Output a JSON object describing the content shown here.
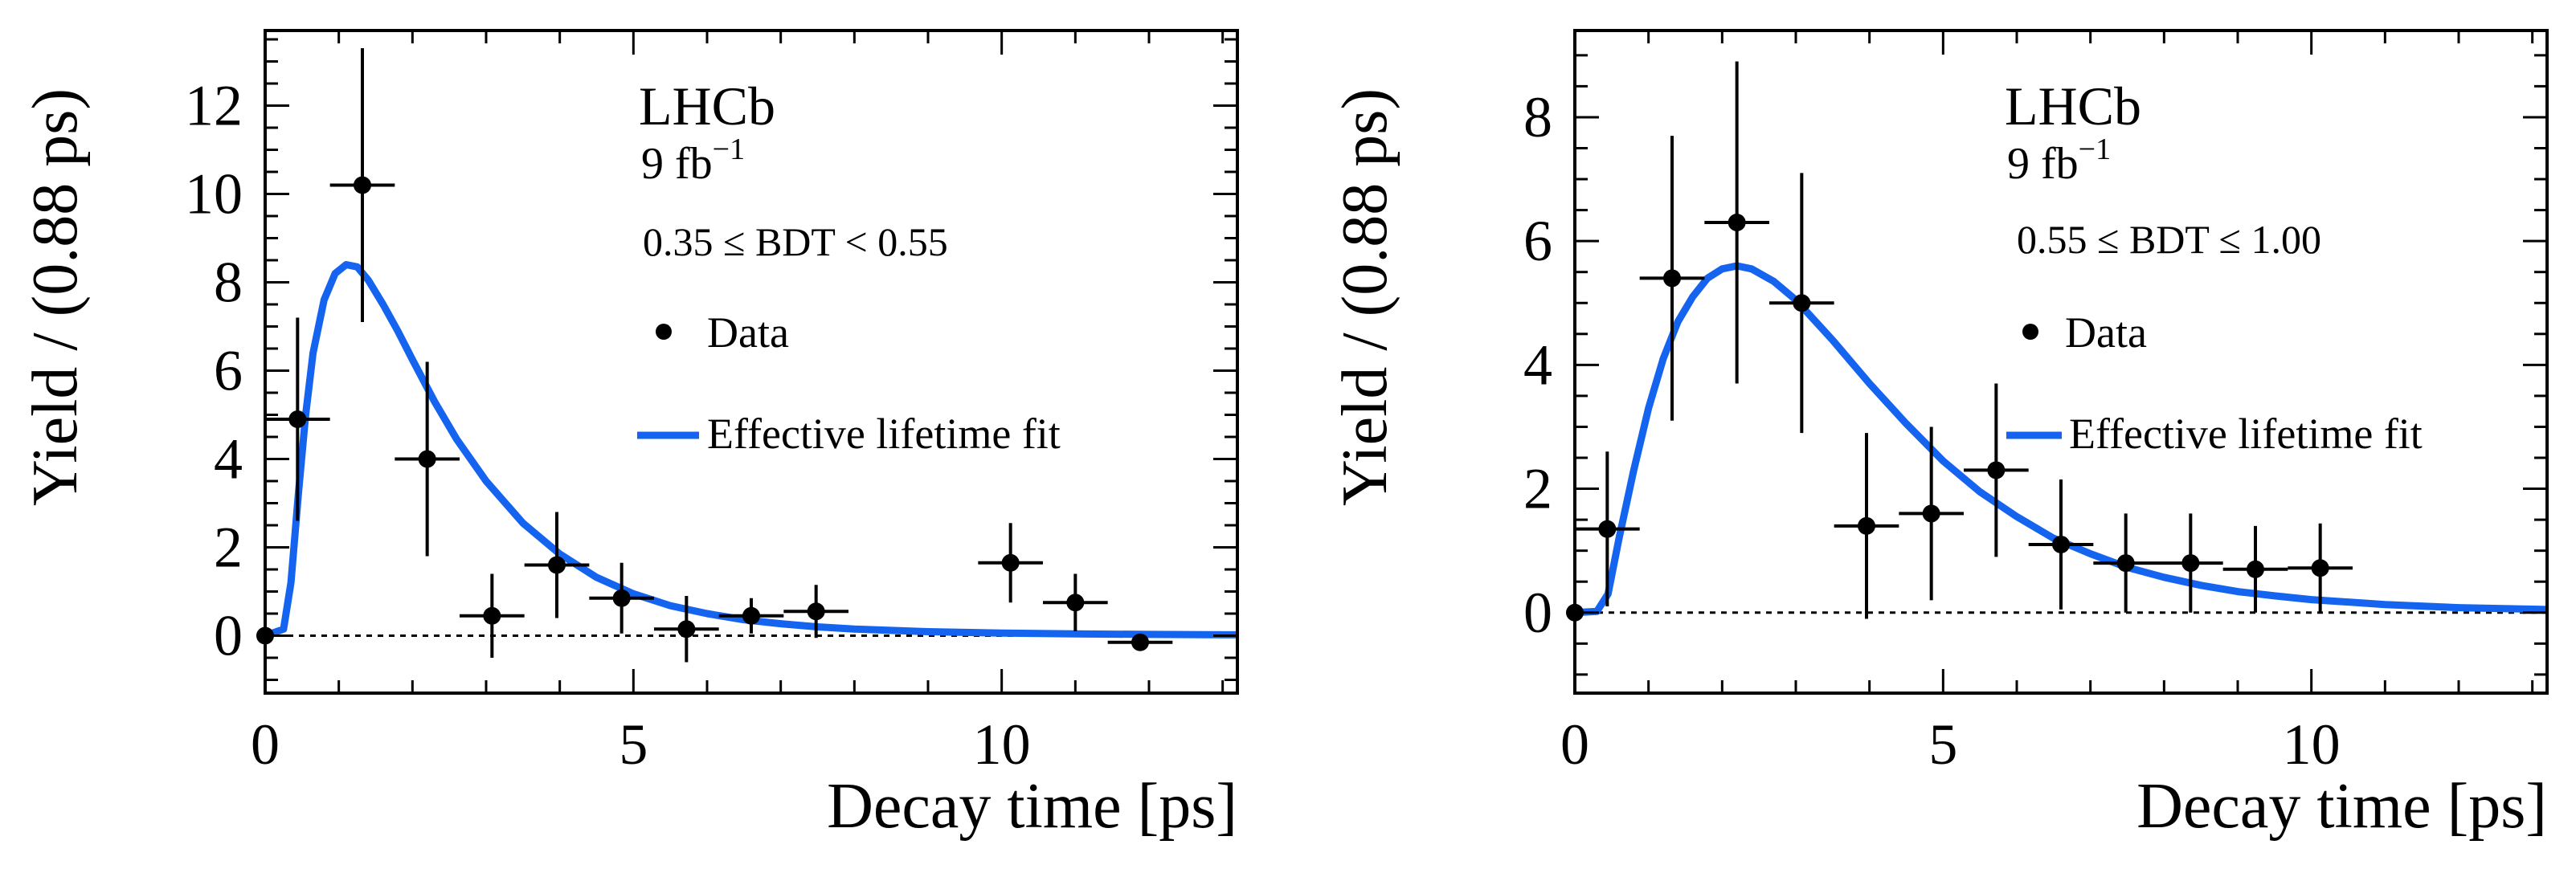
{
  "chart_data": [
    {
      "type": "scatter",
      "experiment": "LHCb",
      "luminosity": "9 fb",
      "luminosity_exp": "−1",
      "selection": "0.35 ≤ BDT < 0.55",
      "xlabel": "Decay time [ps]",
      "ylabel": "Yield / (0.88 ps)",
      "xlim": [
        0,
        13.2
      ],
      "ylim": [
        -1.3,
        13.7
      ],
      "xticks": [
        0,
        5,
        10
      ],
      "yticks": [
        0,
        2,
        4,
        6,
        8,
        10,
        12
      ],
      "xtick_labels": [
        "0",
        "5",
        "10"
      ],
      "ytick_labels": [
        "0",
        "2",
        "4",
        "6",
        "8",
        "10",
        "12"
      ],
      "legend": [
        "Data",
        "Effective lifetime fit"
      ],
      "series": [
        {
          "name": "Data",
          "points": [
            {
              "x": 0.0,
              "y": 0.0,
              "xerr": 0.0,
              "ylo": 0.0,
              "yhi": 0.0
            },
            {
              "x": 0.44,
              "y": 4.9,
              "xerr": 0.44,
              "ylo": 2.3,
              "yhi": 2.3
            },
            {
              "x": 1.32,
              "y": 10.2,
              "xerr": 0.44,
              "ylo": 3.1,
              "yhi": 3.1
            },
            {
              "x": 2.2,
              "y": 4.0,
              "xerr": 0.44,
              "ylo": 2.2,
              "yhi": 2.2
            },
            {
              "x": 3.08,
              "y": 0.45,
              "xerr": 0.44,
              "ylo": 0.95,
              "yhi": 0.95
            },
            {
              "x": 3.96,
              "y": 1.6,
              "xerr": 0.44,
              "ylo": 1.2,
              "yhi": 1.2
            },
            {
              "x": 4.84,
              "y": 0.85,
              "xerr": 0.44,
              "ylo": 0.8,
              "yhi": 0.8
            },
            {
              "x": 5.72,
              "y": 0.15,
              "xerr": 0.44,
              "ylo": 0.75,
              "yhi": 0.75
            },
            {
              "x": 6.6,
              "y": 0.45,
              "xerr": 0.44,
              "ylo": 0.4,
              "yhi": 0.4
            },
            {
              "x": 7.48,
              "y": 0.55,
              "xerr": 0.44,
              "ylo": 0.6,
              "yhi": 0.6
            },
            {
              "x": 10.12,
              "y": 1.65,
              "xerr": 0.44,
              "ylo": 0.9,
              "yhi": 0.9
            },
            {
              "x": 11.0,
              "y": 0.75,
              "xerr": 0.44,
              "ylo": 0.65,
              "yhi": 0.65
            },
            {
              "x": 11.88,
              "y": -0.15,
              "xerr": 0.44,
              "ylo": 0.0,
              "yhi": 0.0
            }
          ]
        },
        {
          "name": "Effective lifetime fit",
          "color": "#1464f0",
          "points": [
            [
              0.0,
              0.0
            ],
            [
              0.25,
              0.15
            ],
            [
              0.35,
              1.2
            ],
            [
              0.45,
              3.2
            ],
            [
              0.55,
              5.0
            ],
            [
              0.65,
              6.4
            ],
            [
              0.8,
              7.6
            ],
            [
              0.95,
              8.2
            ],
            [
              1.1,
              8.4
            ],
            [
              1.25,
              8.35
            ],
            [
              1.4,
              8.05
            ],
            [
              1.6,
              7.5
            ],
            [
              1.8,
              6.9
            ],
            [
              2.0,
              6.25
            ],
            [
              2.3,
              5.3
            ],
            [
              2.6,
              4.45
            ],
            [
              3.0,
              3.5
            ],
            [
              3.5,
              2.55
            ],
            [
              4.0,
              1.85
            ],
            [
              4.5,
              1.32
            ],
            [
              5.0,
              0.95
            ],
            [
              5.5,
              0.68
            ],
            [
              6.0,
              0.5
            ],
            [
              6.5,
              0.36
            ],
            [
              7.0,
              0.27
            ],
            [
              7.5,
              0.2
            ],
            [
              8.0,
              0.15
            ],
            [
              9.0,
              0.09
            ],
            [
              10.0,
              0.06
            ],
            [
              11.0,
              0.04
            ],
            [
              12.0,
              0.03
            ],
            [
              13.2,
              0.02
            ]
          ]
        }
      ]
    },
    {
      "type": "scatter",
      "experiment": "LHCb",
      "luminosity": "9 fb",
      "luminosity_exp": "−1",
      "selection": "0.55 ≤ BDT ≤ 1.00",
      "xlabel": "Decay time [ps]",
      "ylabel": "Yield / (0.88 ps)",
      "xlim": [
        0,
        13.2
      ],
      "ylim": [
        -1.3,
        9.4
      ],
      "xticks": [
        0,
        5,
        10
      ],
      "yticks": [
        0,
        2,
        4,
        6,
        8
      ],
      "xtick_labels": [
        "0",
        "5",
        "10"
      ],
      "ytick_labels": [
        "0",
        "2",
        "4",
        "6",
        "8"
      ],
      "legend": [
        "Data",
        "Effective lifetime fit"
      ],
      "series": [
        {
          "name": "Data",
          "points": [
            {
              "x": 0.0,
              "y": 0.0,
              "xerr": 0.0,
              "ylo": 0.0,
              "yhi": 0.0
            },
            {
              "x": 0.44,
              "y": 1.35,
              "xerr": 0.44,
              "ylo": 1.25,
              "yhi": 1.25
            },
            {
              "x": 1.32,
              "y": 5.4,
              "xerr": 0.44,
              "ylo": 2.3,
              "yhi": 2.3
            },
            {
              "x": 2.2,
              "y": 6.3,
              "xerr": 0.44,
              "ylo": 2.6,
              "yhi": 2.6
            },
            {
              "x": 3.08,
              "y": 5.0,
              "xerr": 0.44,
              "ylo": 2.1,
              "yhi": 2.1
            },
            {
              "x": 3.96,
              "y": 1.4,
              "xerr": 0.44,
              "ylo": 1.5,
              "yhi": 1.5
            },
            {
              "x": 4.84,
              "y": 1.6,
              "xerr": 0.44,
              "ylo": 1.4,
              "yhi": 1.4
            },
            {
              "x": 5.72,
              "y": 2.3,
              "xerr": 0.44,
              "ylo": 1.4,
              "yhi": 1.4
            },
            {
              "x": 6.6,
              "y": 1.1,
              "xerr": 0.44,
              "ylo": 1.05,
              "yhi": 1.05
            },
            {
              "x": 7.48,
              "y": 0.8,
              "xerr": 0.44,
              "ylo": 0.8,
              "yhi": 0.8
            },
            {
              "x": 8.36,
              "y": 0.8,
              "xerr": 0.44,
              "ylo": 0.8,
              "yhi": 0.8
            },
            {
              "x": 9.24,
              "y": 0.7,
              "xerr": 0.44,
              "ylo": 0.7,
              "yhi": 0.7
            },
            {
              "x": 10.12,
              "y": 0.72,
              "xerr": 0.44,
              "ylo": 0.72,
              "yhi": 0.72
            }
          ]
        },
        {
          "name": "Effective lifetime fit",
          "color": "#1464f0",
          "points": [
            [
              0.0,
              0.0
            ],
            [
              0.3,
              0.02
            ],
            [
              0.45,
              0.3
            ],
            [
              0.6,
              1.2
            ],
            [
              0.8,
              2.3
            ],
            [
              1.0,
              3.3
            ],
            [
              1.2,
              4.1
            ],
            [
              1.4,
              4.7
            ],
            [
              1.6,
              5.1
            ],
            [
              1.8,
              5.4
            ],
            [
              2.0,
              5.55
            ],
            [
              2.2,
              5.6
            ],
            [
              2.4,
              5.55
            ],
            [
              2.7,
              5.35
            ],
            [
              3.0,
              5.05
            ],
            [
              3.5,
              4.4
            ],
            [
              4.0,
              3.7
            ],
            [
              4.5,
              3.05
            ],
            [
              5.0,
              2.45
            ],
            [
              5.5,
              1.95
            ],
            [
              6.0,
              1.55
            ],
            [
              6.5,
              1.2
            ],
            [
              7.0,
              0.95
            ],
            [
              7.5,
              0.73
            ],
            [
              8.0,
              0.57
            ],
            [
              8.5,
              0.44
            ],
            [
              9.0,
              0.34
            ],
            [
              9.5,
              0.27
            ],
            [
              10.0,
              0.21
            ],
            [
              11.0,
              0.13
            ],
            [
              12.0,
              0.08
            ],
            [
              13.2,
              0.05
            ]
          ]
        }
      ]
    }
  ]
}
